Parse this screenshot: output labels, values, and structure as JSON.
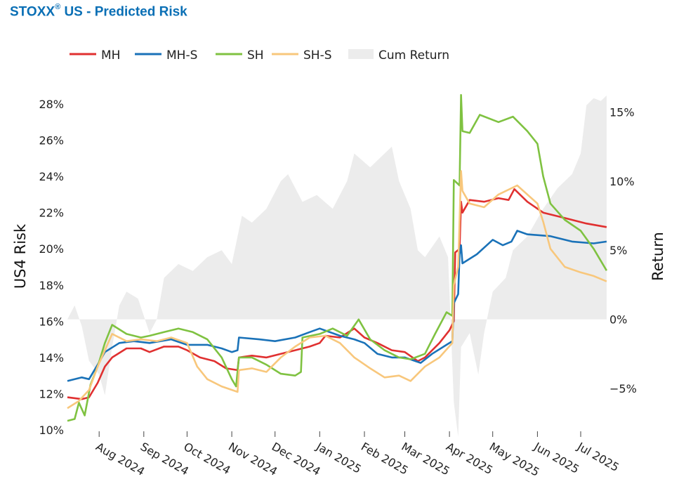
{
  "title": {
    "main": "STOXX",
    "reg": "®",
    "rest": " US - Predicted Risk"
  },
  "chart_data": {
    "type": "line",
    "title": "STOXX® US - Predicted Risk",
    "ylabel": "US4 Risk",
    "y2label": "Return",
    "ylim": [
      10,
      28.7
    ],
    "y2lim": [
      -8,
      16.5
    ],
    "yticks": [
      "10%",
      "12%",
      "14%",
      "16%",
      "18%",
      "20%",
      "22%",
      "24%",
      "26%",
      "28%"
    ],
    "y2ticks": [
      "−5%",
      "0%",
      "5%",
      "10%",
      "15%"
    ],
    "xticks": [
      "Aug 2024",
      "Sep 2024",
      "Oct 2024",
      "Nov 2024",
      "Dec 2024",
      "Jan 2025",
      "Feb 2025",
      "Mar 2025",
      "Apr 2025",
      "May 2025",
      "Jun 2025",
      "Jul 2025"
    ],
    "xrange": [
      "2024-07-10",
      "2025-07-20"
    ],
    "legend_position": "top",
    "series": [
      {
        "name": "MH",
        "color": "#e03030",
        "points": [
          [
            "2024-07-10",
            11.8
          ],
          [
            "2024-07-20",
            11.7
          ],
          [
            "2024-07-25",
            11.8
          ],
          [
            "2024-07-31",
            12.6
          ],
          [
            "2024-08-05",
            13.5
          ],
          [
            "2024-08-10",
            14.0
          ],
          [
            "2024-08-20",
            14.5
          ],
          [
            "2024-08-30",
            14.5
          ],
          [
            "2024-09-05",
            14.3
          ],
          [
            "2024-09-15",
            14.6
          ],
          [
            "2024-09-25",
            14.6
          ],
          [
            "2024-10-01",
            14.4
          ],
          [
            "2024-10-10",
            14.0
          ],
          [
            "2024-10-20",
            13.8
          ],
          [
            "2024-10-28",
            13.4
          ],
          [
            "2024-11-05",
            13.3
          ],
          [
            "2024-11-06",
            14.0
          ],
          [
            "2024-11-15",
            14.1
          ],
          [
            "2024-11-25",
            14.0
          ],
          [
            "2024-12-05",
            14.2
          ],
          [
            "2024-12-15",
            14.4
          ],
          [
            "2024-12-25",
            14.6
          ],
          [
            "2025-01-01",
            14.8
          ],
          [
            "2025-01-05",
            15.2
          ],
          [
            "2025-01-15",
            15.1
          ],
          [
            "2025-01-25",
            15.6
          ],
          [
            "2025-02-01",
            15.1
          ],
          [
            "2025-02-10",
            14.8
          ],
          [
            "2025-02-20",
            14.4
          ],
          [
            "2025-03-01",
            14.3
          ],
          [
            "2025-03-10",
            13.8
          ],
          [
            "2025-03-15",
            14.0
          ],
          [
            "2025-03-25",
            14.8
          ],
          [
            "2025-04-01",
            15.5
          ],
          [
            "2025-04-04",
            16.0
          ],
          [
            "2025-04-05",
            19.8
          ],
          [
            "2025-04-08",
            20.0
          ],
          [
            "2025-04-09",
            22.6
          ],
          [
            "2025-04-10",
            22.0
          ],
          [
            "2025-04-15",
            22.7
          ],
          [
            "2025-04-25",
            22.6
          ],
          [
            "2025-05-05",
            22.8
          ],
          [
            "2025-05-12",
            22.7
          ],
          [
            "2025-05-16",
            23.3
          ],
          [
            "2025-05-25",
            22.6
          ],
          [
            "2025-06-05",
            22.0
          ],
          [
            "2025-06-20",
            21.7
          ],
          [
            "2025-07-05",
            21.4
          ],
          [
            "2025-07-19",
            21.2
          ]
        ]
      },
      {
        "name": "MH-S",
        "color": "#1a72b8",
        "points": [
          [
            "2024-07-10",
            12.7
          ],
          [
            "2024-07-20",
            12.9
          ],
          [
            "2024-07-25",
            12.8
          ],
          [
            "2024-07-31",
            13.6
          ],
          [
            "2024-08-05",
            14.3
          ],
          [
            "2024-08-15",
            14.8
          ],
          [
            "2024-08-25",
            14.9
          ],
          [
            "2024-09-05",
            14.8
          ],
          [
            "2024-09-20",
            15.0
          ],
          [
            "2024-10-01",
            14.7
          ],
          [
            "2024-10-15",
            14.7
          ],
          [
            "2024-10-25",
            14.5
          ],
          [
            "2024-11-01",
            14.3
          ],
          [
            "2024-11-05",
            14.4
          ],
          [
            "2024-11-06",
            15.1
          ],
          [
            "2024-11-20",
            15.0
          ],
          [
            "2024-12-01",
            14.9
          ],
          [
            "2024-12-15",
            15.1
          ],
          [
            "2024-12-25",
            15.4
          ],
          [
            "2025-01-01",
            15.6
          ],
          [
            "2025-01-15",
            15.2
          ],
          [
            "2025-01-25",
            15.0
          ],
          [
            "2025-02-01",
            14.8
          ],
          [
            "2025-02-10",
            14.2
          ],
          [
            "2025-02-20",
            14.0
          ],
          [
            "2025-03-01",
            14.0
          ],
          [
            "2025-03-12",
            13.7
          ],
          [
            "2025-03-20",
            14.2
          ],
          [
            "2025-03-28",
            14.6
          ],
          [
            "2025-04-03",
            14.9
          ],
          [
            "2025-04-04",
            17.0
          ],
          [
            "2025-04-07",
            17.5
          ],
          [
            "2025-04-08",
            19.7
          ],
          [
            "2025-04-09",
            20.2
          ],
          [
            "2025-04-10",
            19.2
          ],
          [
            "2025-04-20",
            19.7
          ],
          [
            "2025-05-01",
            20.5
          ],
          [
            "2025-05-08",
            20.2
          ],
          [
            "2025-05-14",
            20.4
          ],
          [
            "2025-05-18",
            21.0
          ],
          [
            "2025-05-25",
            20.8
          ],
          [
            "2025-06-10",
            20.7
          ],
          [
            "2025-06-25",
            20.4
          ],
          [
            "2025-07-10",
            20.3
          ],
          [
            "2025-07-19",
            20.4
          ]
        ]
      },
      {
        "name": "SH",
        "color": "#7fc241",
        "points": [
          [
            "2024-07-10",
            10.5
          ],
          [
            "2024-07-15",
            10.6
          ],
          [
            "2024-07-18",
            11.5
          ],
          [
            "2024-07-22",
            10.8
          ],
          [
            "2024-07-26",
            12.5
          ],
          [
            "2024-07-31",
            13.5
          ],
          [
            "2024-08-05",
            14.8
          ],
          [
            "2024-08-10",
            15.8
          ],
          [
            "2024-08-20",
            15.3
          ],
          [
            "2024-08-30",
            15.1
          ],
          [
            "2024-09-05",
            15.2
          ],
          [
            "2024-09-15",
            15.4
          ],
          [
            "2024-09-25",
            15.6
          ],
          [
            "2024-10-05",
            15.4
          ],
          [
            "2024-10-15",
            15.0
          ],
          [
            "2024-10-25",
            14.0
          ],
          [
            "2024-11-01",
            12.8
          ],
          [
            "2024-11-04",
            12.4
          ],
          [
            "2024-11-06",
            14.0
          ],
          [
            "2024-11-15",
            14.0
          ],
          [
            "2024-11-25",
            13.6
          ],
          [
            "2024-12-05",
            13.1
          ],
          [
            "2024-12-15",
            13.0
          ],
          [
            "2024-12-19",
            13.2
          ],
          [
            "2024-12-20",
            15.1
          ],
          [
            "2025-01-01",
            15.3
          ],
          [
            "2025-01-10",
            15.6
          ],
          [
            "2025-01-20",
            15.2
          ],
          [
            "2025-01-28",
            16.1
          ],
          [
            "2025-02-05",
            15.0
          ],
          [
            "2025-02-15",
            14.4
          ],
          [
            "2025-02-25",
            14.0
          ],
          [
            "2025-03-05",
            13.9
          ],
          [
            "2025-03-15",
            14.2
          ],
          [
            "2025-03-22",
            15.3
          ],
          [
            "2025-03-30",
            16.5
          ],
          [
            "2025-04-03",
            16.3
          ],
          [
            "2025-04-04",
            23.8
          ],
          [
            "2025-04-08",
            23.5
          ],
          [
            "2025-04-09",
            28.5
          ],
          [
            "2025-04-10",
            26.5
          ],
          [
            "2025-04-15",
            26.4
          ],
          [
            "2025-04-22",
            27.4
          ],
          [
            "2025-05-05",
            27.0
          ],
          [
            "2025-05-15",
            27.3
          ],
          [
            "2025-05-25",
            26.5
          ],
          [
            "2025-06-01",
            25.8
          ],
          [
            "2025-06-05",
            24.0
          ],
          [
            "2025-06-10",
            22.5
          ],
          [
            "2025-06-20",
            21.6
          ],
          [
            "2025-07-01",
            21.0
          ],
          [
            "2025-07-10",
            20.0
          ],
          [
            "2025-07-19",
            18.8
          ]
        ]
      },
      {
        "name": "SH-S",
        "color": "#f8c77c",
        "points": [
          [
            "2024-07-10",
            11.2
          ],
          [
            "2024-07-18",
            11.6
          ],
          [
            "2024-07-25",
            12.2
          ],
          [
            "2024-07-31",
            13.5
          ],
          [
            "2024-08-10",
            15.3
          ],
          [
            "2024-08-20",
            14.9
          ],
          [
            "2024-08-30",
            15.0
          ],
          [
            "2024-09-10",
            14.9
          ],
          [
            "2024-09-20",
            15.1
          ],
          [
            "2024-10-01",
            14.8
          ],
          [
            "2024-10-08",
            13.5
          ],
          [
            "2024-10-15",
            12.8
          ],
          [
            "2024-10-25",
            12.4
          ],
          [
            "2024-11-05",
            12.1
          ],
          [
            "2024-11-06",
            13.3
          ],
          [
            "2024-11-15",
            13.4
          ],
          [
            "2024-11-25",
            13.2
          ],
          [
            "2024-12-05",
            14.0
          ],
          [
            "2024-12-15",
            14.6
          ],
          [
            "2024-12-25",
            15.1
          ],
          [
            "2025-01-05",
            15.2
          ],
          [
            "2025-01-15",
            14.8
          ],
          [
            "2025-01-25",
            14.0
          ],
          [
            "2025-02-05",
            13.4
          ],
          [
            "2025-02-15",
            12.9
          ],
          [
            "2025-02-25",
            13.0
          ],
          [
            "2025-03-05",
            12.7
          ],
          [
            "2025-03-15",
            13.5
          ],
          [
            "2025-03-25",
            14.0
          ],
          [
            "2025-04-03",
            14.8
          ],
          [
            "2025-04-04",
            18.0
          ],
          [
            "2025-04-07",
            19.0
          ],
          [
            "2025-04-09",
            24.3
          ],
          [
            "2025-04-10",
            23.2
          ],
          [
            "2025-04-15",
            22.5
          ],
          [
            "2025-04-25",
            22.3
          ],
          [
            "2025-05-05",
            23.0
          ],
          [
            "2025-05-18",
            23.5
          ],
          [
            "2025-06-01",
            22.5
          ],
          [
            "2025-06-05",
            21.5
          ],
          [
            "2025-06-10",
            20.0
          ],
          [
            "2025-06-20",
            19.0
          ],
          [
            "2025-07-01",
            18.7
          ],
          [
            "2025-07-10",
            18.5
          ],
          [
            "2025-07-19",
            18.2
          ]
        ]
      }
    ],
    "area": {
      "name": "Cum Return",
      "color": "#ececec",
      "points": [
        [
          "2024-07-10",
          0.0
        ],
        [
          "2024-07-15",
          1.0
        ],
        [
          "2024-07-20",
          -0.5
        ],
        [
          "2024-07-25",
          -3.0
        ],
        [
          "2024-08-01",
          -4.0
        ],
        [
          "2024-08-05",
          -5.5
        ],
        [
          "2024-08-10",
          -2.0
        ],
        [
          "2024-08-15",
          1.0
        ],
        [
          "2024-08-20",
          2.0
        ],
        [
          "2024-08-28",
          1.5
        ],
        [
          "2024-09-05",
          -1.0
        ],
        [
          "2024-09-10",
          0.0
        ],
        [
          "2024-09-15",
          3.0
        ],
        [
          "2024-09-25",
          4.0
        ],
        [
          "2024-10-05",
          3.5
        ],
        [
          "2024-10-15",
          4.5
        ],
        [
          "2024-10-25",
          5.0
        ],
        [
          "2024-11-01",
          4.0
        ],
        [
          "2024-11-08",
          7.5
        ],
        [
          "2024-11-15",
          7.0
        ],
        [
          "2024-11-25",
          8.0
        ],
        [
          "2024-12-05",
          10.0
        ],
        [
          "2024-12-10",
          10.5
        ],
        [
          "2024-12-20",
          8.5
        ],
        [
          "2024-12-30",
          9.0
        ],
        [
          "2025-01-10",
          8.0
        ],
        [
          "2025-01-20",
          10.0
        ],
        [
          "2025-01-25",
          12.0
        ],
        [
          "2025-02-05",
          11.0
        ],
        [
          "2025-02-15",
          12.0
        ],
        [
          "2025-02-20",
          12.5
        ],
        [
          "2025-02-25",
          10.0
        ],
        [
          "2025-03-05",
          8.0
        ],
        [
          "2025-03-10",
          5.0
        ],
        [
          "2025-03-15",
          4.5
        ],
        [
          "2025-03-25",
          6.0
        ],
        [
          "2025-03-31",
          4.5
        ],
        [
          "2025-04-04",
          -6.0
        ],
        [
          "2025-04-07",
          -8.5
        ],
        [
          "2025-04-09",
          -2.0
        ],
        [
          "2025-04-15",
          -1.0
        ],
        [
          "2025-04-21",
          -4.0
        ],
        [
          "2025-04-25",
          -1.0
        ],
        [
          "2025-05-01",
          2.0
        ],
        [
          "2025-05-10",
          3.0
        ],
        [
          "2025-05-15",
          5.0
        ],
        [
          "2025-05-25",
          6.0
        ],
        [
          "2025-06-05",
          8.0
        ],
        [
          "2025-06-15",
          9.5
        ],
        [
          "2025-06-25",
          10.5
        ],
        [
          "2025-07-01",
          12.0
        ],
        [
          "2025-07-05",
          15.5
        ],
        [
          "2025-07-10",
          16.0
        ],
        [
          "2025-07-15",
          15.8
        ],
        [
          "2025-07-19",
          16.2
        ]
      ]
    }
  }
}
